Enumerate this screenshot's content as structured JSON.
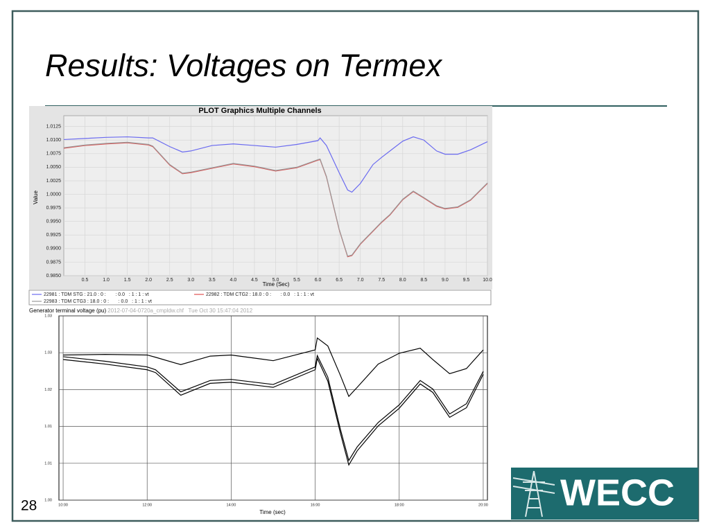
{
  "slide": {
    "title": "Results: Voltages on Termex",
    "page_number": "28",
    "logo": "WECC"
  },
  "chart_data": [
    {
      "type": "line",
      "title": "PLOT Graphics Multiple Channels",
      "x_label": "Time (Sec)",
      "y_label": "Value",
      "xlim": [
        0,
        10
      ],
      "ylim": [
        0.985,
        1.0145
      ],
      "xticks": [
        0.5,
        {
          "value": 1,
          "label": "1.0"
        },
        1.5,
        {
          "value": 2,
          "label": "2.0"
        },
        2.5,
        {
          "value": 3,
          "label": "3.0"
        },
        3.5,
        {
          "value": 4,
          "label": "4.0"
        },
        4.5,
        {
          "value": 5,
          "label": "5.0"
        },
        5.5,
        {
          "value": 6,
          "label": "6.0"
        },
        6.5,
        {
          "value": 7,
          "label": "7.0"
        },
        7.5,
        {
          "value": 8,
          "label": "8.0"
        },
        8.5,
        {
          "value": 9,
          "label": "9.0"
        },
        9.5,
        {
          "value": 10,
          "label": "10.0"
        }
      ],
      "yticks": [
        {
          "value": 0.985,
          "label": "0.9850"
        },
        {
          "value": 0.9875,
          "label": "0.9875"
        },
        {
          "value": 0.99,
          "label": "0.9900"
        },
        {
          "value": 0.9925,
          "label": "0.9925"
        },
        {
          "value": 0.995,
          "label": "0.9950"
        },
        {
          "value": 0.9975,
          "label": "0.9975"
        },
        {
          "value": 1.0,
          "label": "1.0000"
        },
        {
          "value": 1.0025,
          "label": "1.0025"
        },
        {
          "value": 1.005,
          "label": "1.0050"
        },
        {
          "value": 1.0075,
          "label": "1.0075"
        },
        {
          "value": 1.01,
          "label": "1.0100"
        },
        {
          "value": 1.0125,
          "label": "1.0125"
        }
      ],
      "grid": true,
      "legend": "bottom",
      "x": [
        0,
        0.5,
        1,
        1.5,
        2,
        2.1,
        2.5,
        2.8,
        3,
        3.5,
        4,
        4.5,
        5,
        5.5,
        6,
        6.05,
        6.2,
        6.5,
        6.7,
        6.8,
        7,
        7.3,
        7.5,
        7.7,
        8,
        8.25,
        8.5,
        8.8,
        9,
        9.3,
        9.6,
        10
      ],
      "series": [
        {
          "name": "22981 : TDM STG : 21.0 : 0 :       : 0.0   : 1 : 1 : vt",
          "color": "#6a6af0",
          "values": [
            1.0101,
            1.0103,
            1.0105,
            1.0106,
            1.0104,
            1.0104,
            1.0088,
            1.0078,
            1.008,
            1.009,
            1.0093,
            1.009,
            1.0087,
            1.0092,
            1.0099,
            1.0104,
            1.009,
            1.004,
            1.0008,
            1.0004,
            1.002,
            1.0055,
            1.0068,
            1.008,
            1.0098,
            1.0106,
            1.01,
            1.008,
            1.0074,
            1.0074,
            1.0082,
            1.0097
          ]
        },
        {
          "name": "22982 : TDM CTG2 : 18.0 : 0 :       : 0.0   : 1 : 1 : vt",
          "color": "#e05050",
          "values": [
            1.0085,
            1.009,
            1.0093,
            1.0095,
            1.0091,
            1.0088,
            1.0054,
            1.0038,
            1.004,
            1.0048,
            1.0056,
            1.0051,
            1.0043,
            1.0049,
            1.0063,
            1.0064,
            1.0032,
            0.9935,
            0.9885,
            0.9887,
            0.9908,
            0.9932,
            0.9948,
            0.9962,
            0.999,
            1.0005,
            0.9993,
            0.9978,
            0.9973,
            0.9976,
            0.9989,
            1.002
          ]
        },
        {
          "name": "22983 : TDM CTG3 : 18.0 : 0 :       : 0.0   : 1 : 1 : vt",
          "color": "#9a9a9a",
          "values": [
            1.0086,
            1.0091,
            1.0094,
            1.0096,
            1.0092,
            1.0089,
            1.0055,
            1.0039,
            1.0041,
            1.0049,
            1.0057,
            1.0052,
            1.0044,
            1.005,
            1.0064,
            1.0065,
            1.0033,
            0.9936,
            0.9886,
            0.9888,
            0.9909,
            0.9933,
            0.9949,
            0.9963,
            0.9991,
            1.0006,
            0.9994,
            0.9979,
            0.9974,
            0.9977,
            0.999,
            1.0021
          ]
        }
      ]
    },
    {
      "type": "line",
      "title": "Generator terminal voltage (pu)",
      "subtitle": "2012-07-04-0720a_cmpldw.chf   Tue Oct 30 15:47:04 2012",
      "x_label": "Time (sec)",
      "xlim": [
        9.9,
        20.1
      ],
      "ylim": [
        1.0,
        1.0325
      ],
      "xticks": [
        {
          "value": 10,
          "label": "10:00"
        },
        {
          "value": 12,
          "label": "12:00"
        },
        {
          "value": 14,
          "label": "14:00"
        },
        {
          "value": 16,
          "label": "16:00"
        },
        {
          "value": 18,
          "label": "18:00"
        },
        {
          "value": 20,
          "label": "20:00"
        }
      ],
      "yticks": [
        {
          "value": 1.0,
          "label": "1.00"
        },
        {
          "value": 1.0065,
          "label": "1.01"
        },
        {
          "value": 1.013,
          "label": "1.01"
        },
        {
          "value": 1.0195,
          "label": "1.02"
        },
        {
          "value": 1.026,
          "label": "1.03"
        },
        {
          "value": 1.0325,
          "label": "1.03"
        }
      ],
      "grid": true,
      "x": [
        10,
        11,
        12,
        12.2,
        12.8,
        13.5,
        14,
        15,
        16,
        16.05,
        16.3,
        16.6,
        16.8,
        17,
        17.5,
        18,
        18.5,
        18.8,
        19.2,
        19.6,
        20
      ],
      "series": [
        {
          "color": "#000000",
          "values": [
            1.0256,
            1.0257,
            1.0256,
            1.0252,
            1.0239,
            1.0254,
            1.0256,
            1.0246,
            1.0265,
            1.0286,
            1.0272,
            1.022,
            1.0183,
            1.0199,
            1.024,
            1.0259,
            1.0268,
            1.0248,
            1.0223,
            1.0232,
            1.0265
          ]
        },
        {
          "color": "#000000",
          "values": [
            1.0253,
            1.0245,
            1.0235,
            1.023,
            1.0191,
            1.0211,
            1.0213,
            1.0204,
            1.0235,
            1.0255,
            1.0217,
            1.0125,
            1.007,
            1.0094,
            1.0137,
            1.0168,
            1.0211,
            1.0196,
            1.0152,
            1.017,
            1.0227
          ]
        },
        {
          "color": "#000000",
          "values": [
            1.0248,
            1.024,
            1.023,
            1.0225,
            1.0185,
            1.0206,
            1.0208,
            1.0199,
            1.023,
            1.025,
            1.021,
            1.0118,
            1.0062,
            1.0087,
            1.0131,
            1.0162,
            1.0205,
            1.019,
            1.0146,
            1.0163,
            1.0222
          ]
        }
      ]
    }
  ]
}
